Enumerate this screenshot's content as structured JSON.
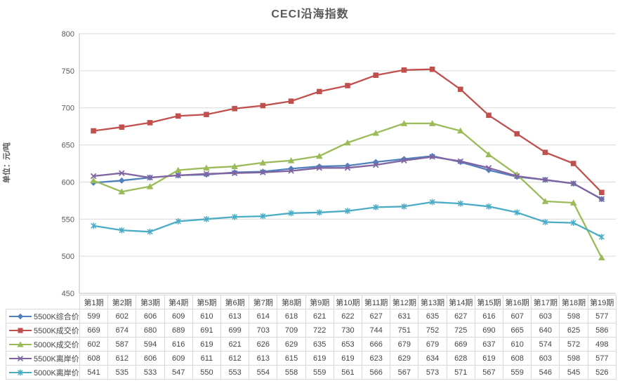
{
  "chart_data": {
    "type": "line",
    "title": "CECI沿海指数",
    "ylabel": "单位：元/吨",
    "xlabel": "",
    "categories": [
      "第1期",
      "第2期",
      "第3期",
      "第4期",
      "第5期",
      "第6期",
      "第7期",
      "第8期",
      "第9期",
      "第10期",
      "第11期",
      "第12期",
      "第13期",
      "第14期",
      "第15期",
      "第16期",
      "第17期",
      "第18期",
      "第19期"
    ],
    "series": [
      {
        "name": "5500K综合价",
        "color": "#4F81BD",
        "marker": "diamond",
        "values": [
          599,
          602,
          606,
          609,
          610,
          613,
          614,
          618,
          621,
          622,
          627,
          631,
          635,
          627,
          616,
          607,
          603,
          598,
          577
        ]
      },
      {
        "name": "5500K成交价",
        "color": "#C0504D",
        "marker": "square",
        "values": [
          669,
          674,
          680,
          689,
          691,
          699,
          703,
          709,
          722,
          730,
          744,
          751,
          752,
          725,
          690,
          665,
          640,
          625,
          586
        ]
      },
      {
        "name": "5000K成交价",
        "color": "#9BBB59",
        "marker": "triangle",
        "values": [
          602,
          587,
          594,
          616,
          619,
          621,
          626,
          629,
          635,
          653,
          666,
          679,
          679,
          669,
          637,
          610,
          574,
          572,
          498
        ]
      },
      {
        "name": "5500K离岸价",
        "color": "#8064A2",
        "marker": "x",
        "values": [
          608,
          612,
          606,
          609,
          611,
          612,
          613,
          615,
          619,
          619,
          623,
          629,
          634,
          628,
          619,
          608,
          603,
          598,
          577
        ]
      },
      {
        "name": "5000K离岸价",
        "color": "#4BACC6",
        "marker": "asterisk",
        "values": [
          541,
          535,
          533,
          547,
          550,
          553,
          554,
          558,
          559,
          561,
          566,
          567,
          573,
          571,
          567,
          559,
          546,
          545,
          526
        ]
      }
    ],
    "ylim": [
      450,
      800
    ],
    "ytick_step": 50,
    "grid": true,
    "legend_position": "left-of-data-table",
    "colors": {
      "grid": "#D9D9D9",
      "axis": "#BFBFBF",
      "tick_text": "#595959",
      "table_border": "#D9D9D9",
      "table_text": "#444444",
      "background": "#FFFFFF"
    }
  }
}
